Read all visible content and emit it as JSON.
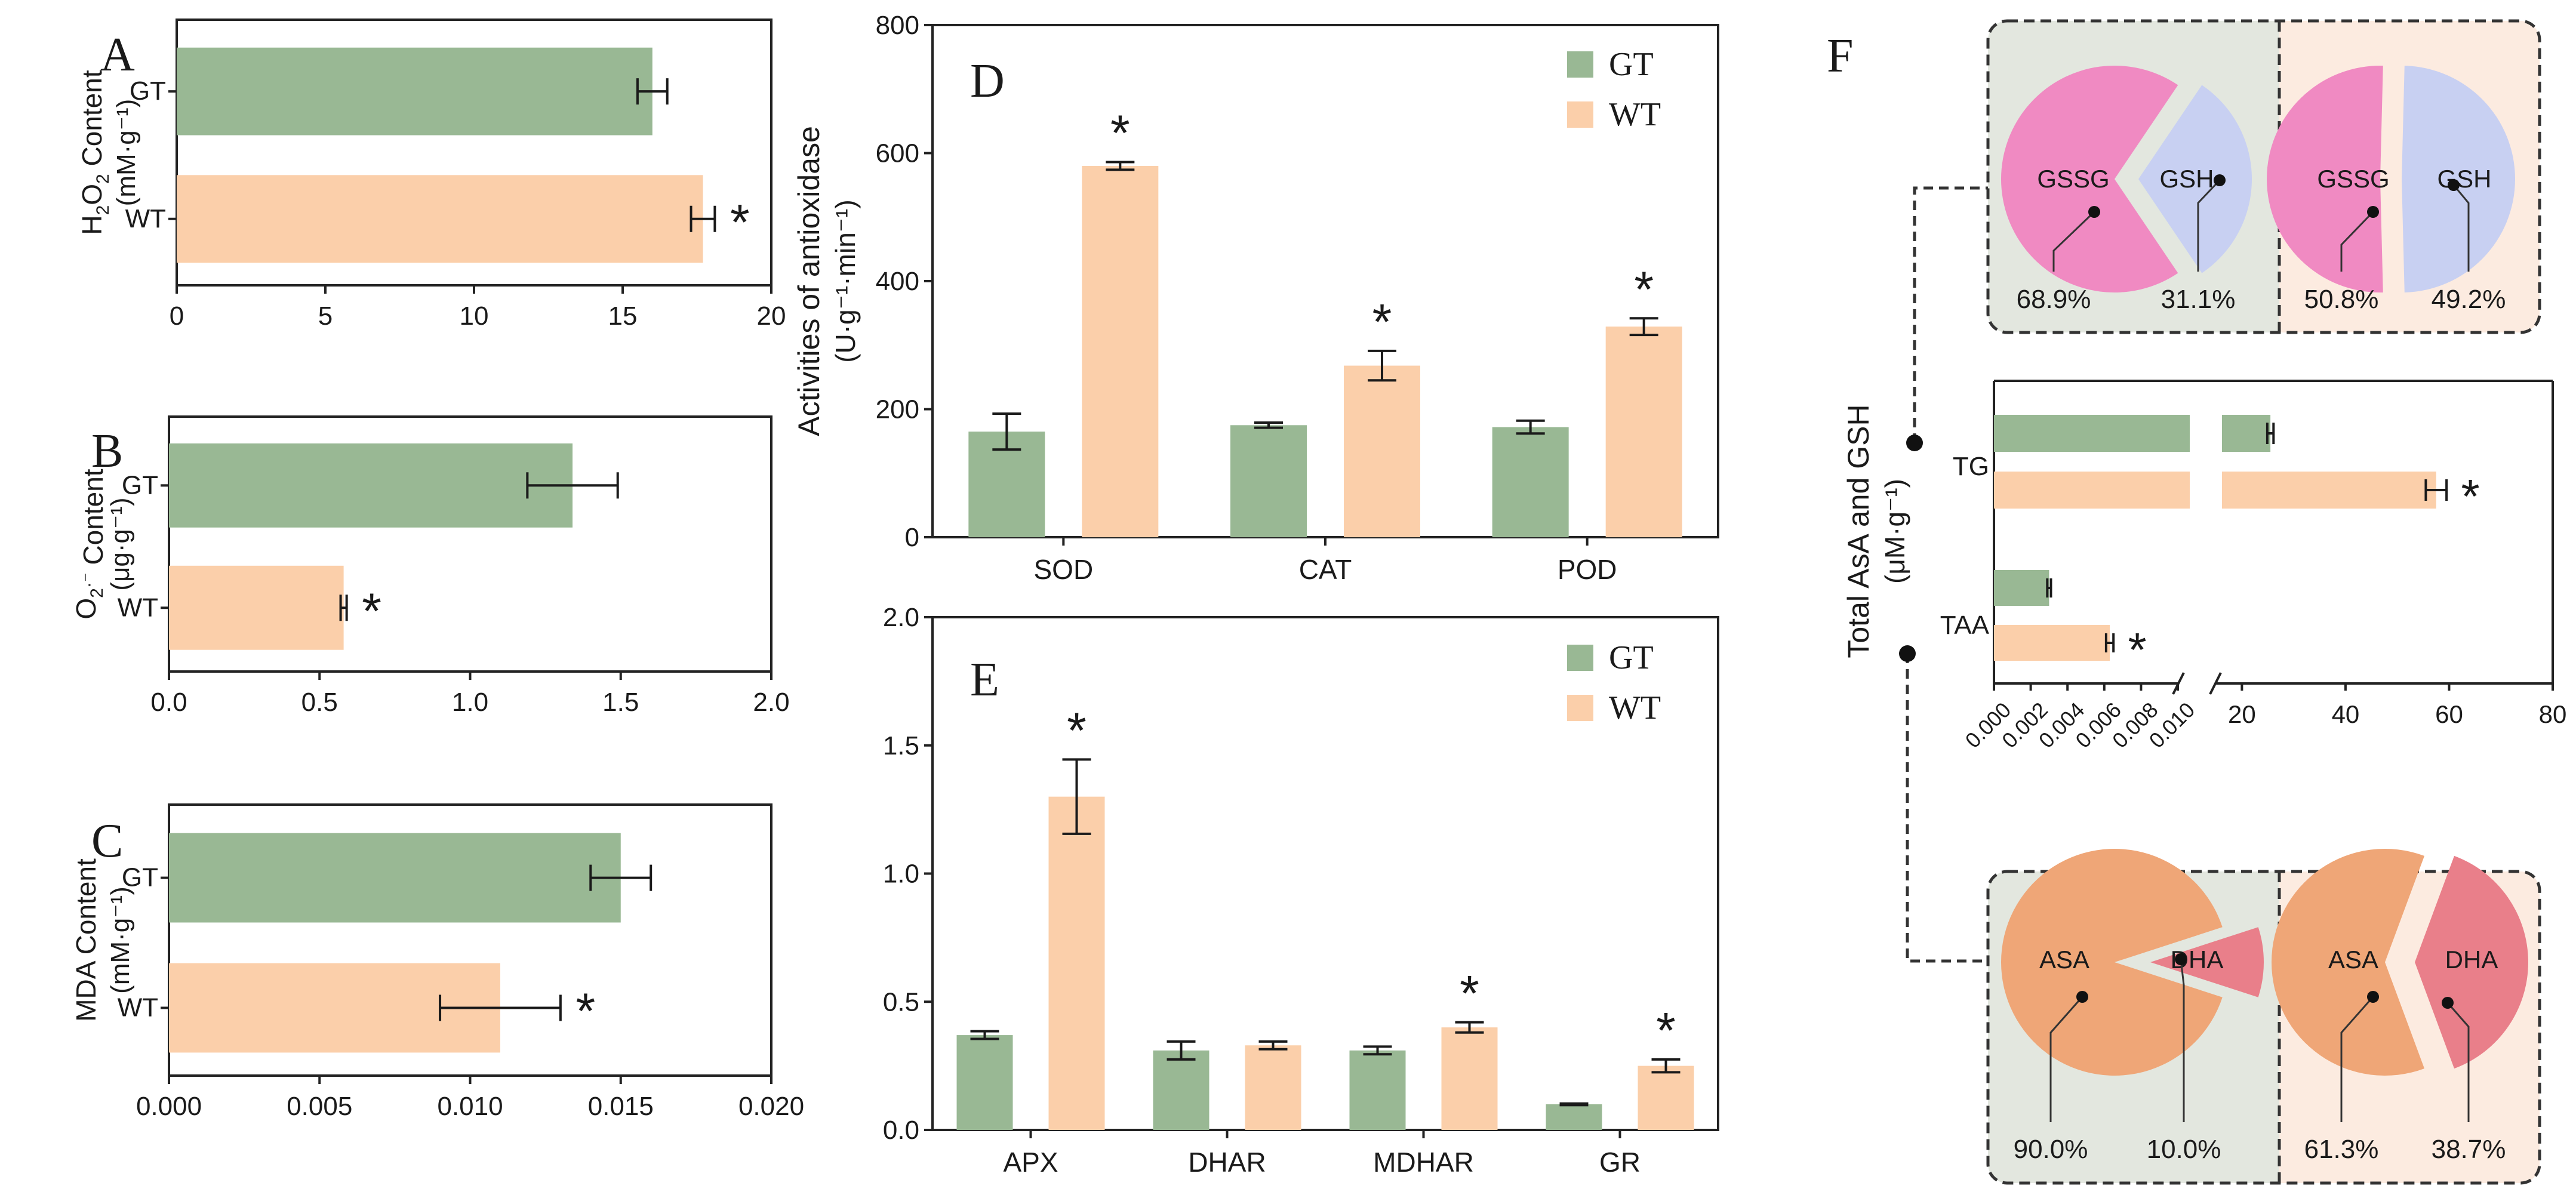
{
  "colors": {
    "gt": "#99b894",
    "wt": "#fbcfaa",
    "gssg": "#f08ac2",
    "gsh": "#c8d0f2",
    "asa": "#efa677",
    "dha": "#e97f8a",
    "box_left": "#e3e7df",
    "box_right": "#fcebe0",
    "ink": "#1a1a1a"
  },
  "chart_data": [
    {
      "id": "A",
      "type": "bar",
      "orientation": "horizontal",
      "categories": [
        "GT",
        "WT"
      ],
      "values": [
        16.0,
        17.7
      ],
      "errors": [
        0.5,
        0.4
      ],
      "significant": [
        false,
        true
      ],
      "ylabel": [
        "H",
        "2",
        "O",
        "2",
        " Content"
      ],
      "ylabel_unit": "(mM·g⁻¹)",
      "xlim": [
        0,
        20
      ],
      "xticks": [
        "0",
        "5",
        "10",
        "15",
        "20"
      ]
    },
    {
      "id": "B",
      "type": "bar",
      "orientation": "horizontal",
      "categories": [
        "GT",
        "WT"
      ],
      "values": [
        1.34,
        0.58
      ],
      "errors": [
        0.15,
        0.01
      ],
      "significant": [
        false,
        true
      ],
      "ylabel": [
        "O",
        "2",
        "·⁻",
        " Content"
      ],
      "ylabel_unit": "(μg·g⁻¹)",
      "xlim": [
        0,
        2
      ],
      "xticks": [
        "0.0",
        "0.5",
        "1.0",
        "1.5",
        "2.0"
      ]
    },
    {
      "id": "C",
      "type": "bar",
      "orientation": "horizontal",
      "categories": [
        "GT",
        "WT"
      ],
      "values": [
        0.015,
        0.011
      ],
      "errors": [
        0.001,
        0.002
      ],
      "significant": [
        false,
        true
      ],
      "ylabel": [
        "MDA Content"
      ],
      "ylabel_unit": "(mM·g⁻¹)",
      "xlim": [
        0,
        0.02
      ],
      "xticks": [
        "0.000",
        "0.005",
        "0.010",
        "0.015",
        "0.020"
      ]
    },
    {
      "id": "D",
      "type": "bar",
      "categories": [
        "SOD",
        "CAT",
        "POD"
      ],
      "series": [
        {
          "name": "GT",
          "values": [
            165,
            175,
            172
          ],
          "errors": [
            28,
            4,
            10
          ]
        },
        {
          "name": "WT",
          "values": [
            580,
            268,
            329
          ],
          "errors": [
            6,
            23,
            13
          ]
        }
      ],
      "significant": [
        true,
        true,
        true
      ],
      "ylim": [
        0,
        800
      ],
      "yticks": [
        "0",
        "200",
        "400",
        "600",
        "800"
      ],
      "ylabel": "Activities of antioxidase",
      "ylabel_unit": "(U·g⁻¹·min⁻¹)"
    },
    {
      "id": "E",
      "type": "bar",
      "categories": [
        "APX",
        "DHAR",
        "MDHAR",
        "GR"
      ],
      "series": [
        {
          "name": "GT",
          "values": [
            0.37,
            0.31,
            0.31,
            0.1
          ],
          "errors": [
            0.015,
            0.035,
            0.015,
            0.003
          ]
        },
        {
          "name": "WT",
          "values": [
            1.3,
            0.33,
            0.4,
            0.25
          ],
          "errors": [
            0.145,
            0.015,
            0.02,
            0.025
          ]
        }
      ],
      "significant": [
        true,
        false,
        true,
        true
      ],
      "ylim": [
        0,
        2.0
      ],
      "yticks": [
        "0.0",
        "0.5",
        "1.0",
        "1.5",
        "2.0"
      ]
    },
    {
      "id": "F",
      "type": "bar",
      "orientation": "horizontal",
      "axis_break": true,
      "categories": [
        "TG",
        "TAA"
      ],
      "series": [
        {
          "name": "GT",
          "values": [
            25.5,
            0.003
          ],
          "errors": [
            0.6,
            0.0001
          ]
        },
        {
          "name": "WT",
          "values": [
            57.5,
            0.0063
          ],
          "errors": [
            2.0,
            0.0002
          ]
        }
      ],
      "significant": [
        true,
        true
      ],
      "xticks_low": [
        "0.000",
        "0.002",
        "0.004",
        "0.006",
        "0.008",
        "0.010"
      ],
      "xticks_high": [
        "20",
        "40",
        "60",
        "80"
      ],
      "xlim_low": [
        0,
        0.01
      ],
      "xlim_high": [
        15,
        80
      ],
      "ylabel": "Total AsA and GSH",
      "ylabel_unit": "(μM·g⁻¹)"
    },
    {
      "id": "F-GSH-GT",
      "type": "pie",
      "labels": [
        "GSSG",
        "GSH"
      ],
      "values": [
        68.9,
        31.1
      ],
      "value_labels": [
        "68.9%",
        "31.1%"
      ]
    },
    {
      "id": "F-GSH-WT",
      "type": "pie",
      "labels": [
        "GSSG",
        "GSH"
      ],
      "values": [
        50.8,
        49.2
      ],
      "value_labels": [
        "50.8%",
        "49.2%"
      ]
    },
    {
      "id": "F-AsA-GT",
      "type": "pie",
      "labels": [
        "ASA",
        "DHA"
      ],
      "values": [
        90.0,
        10.0
      ],
      "value_labels": [
        "90.0%",
        "10.0%"
      ]
    },
    {
      "id": "F-AsA-WT",
      "type": "pie",
      "labels": [
        "ASA",
        "DHA"
      ],
      "values": [
        61.3,
        38.7
      ],
      "value_labels": [
        "61.3%",
        "38.7%"
      ]
    }
  ],
  "legend": {
    "gt": "GT",
    "wt": "WT"
  },
  "significance_mark": "*"
}
